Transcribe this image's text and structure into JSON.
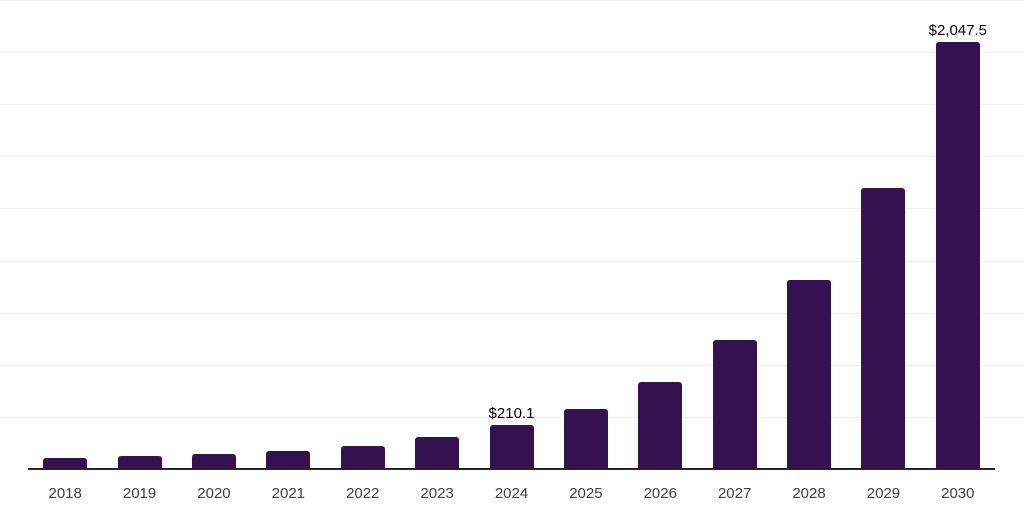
{
  "chart_data": {
    "type": "bar",
    "title": "",
    "xlabel": "",
    "ylabel": "",
    "categories": [
      "2018",
      "2019",
      "2020",
      "2021",
      "2022",
      "2023",
      "2024",
      "2025",
      "2026",
      "2027",
      "2028",
      "2029",
      "2030"
    ],
    "values": [
      52.6,
      62.2,
      70.3,
      84.7,
      108.6,
      153.1,
      210.1,
      288.5,
      419.6,
      617.1,
      905.6,
      1347.7,
      2047.5
    ],
    "data_labels": [
      "",
      "",
      "",
      "",
      "",
      "",
      "$210.1",
      "",
      "",
      "",
      "",
      "",
      "$2,047.5"
    ],
    "ylim": [
      0,
      2250
    ],
    "gridline_step": 250,
    "grid": "horizontal",
    "legend": false,
    "y_axis_tick_labels_visible": false,
    "colors": {
      "bar": "#36114F",
      "axis_line": "#262626",
      "gridline": "#F0F0F0",
      "data_label_text": "#000000",
      "tick_label_text": "#404040",
      "background": "#FFFFFF"
    }
  }
}
